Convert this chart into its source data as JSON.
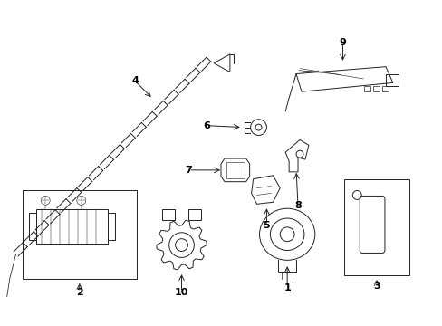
{
  "background_color": "#ffffff",
  "fig_width": 4.89,
  "fig_height": 3.6,
  "line_color": "#222222",
  "font_size": 8,
  "lw": 0.7
}
